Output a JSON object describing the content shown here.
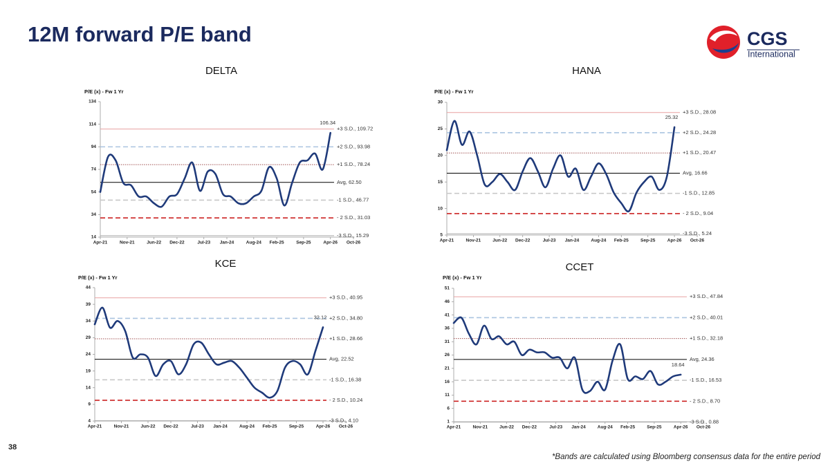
{
  "header": {
    "title": "12M forward P/E band"
  },
  "logo": {
    "name": "CGS",
    "sub": "International"
  },
  "chart_data": [
    {
      "type": "line",
      "title": "DELTA",
      "y_label": "P/E (x) - Fw 1 Yr",
      "x": [
        0,
        2,
        4,
        6,
        8,
        10,
        12,
        14,
        16,
        18,
        20,
        22,
        24,
        26,
        28,
        30,
        32,
        34,
        36,
        38,
        40,
        42,
        44,
        46,
        48,
        50,
        52,
        54,
        56,
        58,
        60
      ],
      "values": [
        54,
        85,
        82,
        62,
        60,
        50,
        50,
        44,
        41,
        50,
        52,
        66,
        80,
        55,
        72,
        70,
        52,
        50,
        44,
        44,
        50,
        55,
        76,
        66,
        42,
        62,
        80,
        82,
        88,
        74,
        106.34
      ],
      "color": "#1f3a7a",
      "xlim": [
        0,
        66
      ],
      "xticks": [
        {
          "value": 0,
          "label": "Apr-21"
        },
        {
          "value": 7,
          "label": "Nov-21"
        },
        {
          "value": 14,
          "label": "Jun-22"
        },
        {
          "value": 20,
          "label": "Dec-22"
        },
        {
          "value": 27,
          "label": "Jul-23"
        },
        {
          "value": 33,
          "label": "Jan-24"
        },
        {
          "value": 40,
          "label": "Aug-24"
        },
        {
          "value": 46,
          "label": "Feb-25"
        },
        {
          "value": 53,
          "label": "Sep-25"
        },
        {
          "value": 60,
          "label": "Apr-26"
        },
        {
          "value": 66,
          "label": "Oct-26"
        }
      ],
      "ylim": [
        14,
        134
      ],
      "yticks": [
        14,
        34,
        54,
        74,
        94,
        114,
        134
      ],
      "bands": [
        {
          "value": 109.72,
          "label": "+3 S.D., 109.72",
          "color": "#e8a0a0",
          "style": "solid"
        },
        {
          "value": 93.98,
          "label": "+2 S.D., 93.98",
          "color": "#aac4e0",
          "style": "dashed"
        },
        {
          "value": 78.24,
          "label": "+1 S.D., 78.24",
          "color": "#a05050",
          "style": "dotted"
        },
        {
          "value": 62.5,
          "label": "Avg, 62.50",
          "color": "#000000",
          "style": "solid"
        },
        {
          "value": 46.77,
          "label": "-1 S.D., 46.77",
          "color": "#c8c8c8",
          "style": "dashed"
        },
        {
          "value": 31.03,
          "label": "- 2 S.D., 31.03",
          "color": "#cc2222",
          "style": "dashed"
        },
        {
          "value": 15.29,
          "label": "-3 S.D., 15.29",
          "color": "#aaaaaa",
          "style": "solid"
        }
      ]
    },
    {
      "type": "line",
      "title": "HANA",
      "y_label": "P/E (x) - Fw 1 Yr",
      "x": [
        0,
        2,
        4,
        6,
        8,
        10,
        12,
        14,
        16,
        18,
        20,
        22,
        24,
        26,
        28,
        30,
        32,
        34,
        36,
        38,
        40,
        42,
        44,
        46,
        48,
        50,
        52,
        54,
        56,
        58,
        60
      ],
      "values": [
        21,
        26.5,
        22,
        24.5,
        20,
        14.5,
        15,
        16.5,
        15,
        13.5,
        17,
        19.5,
        17,
        14,
        17.5,
        20,
        16,
        17.5,
        13.5,
        16,
        18.5,
        16.5,
        13,
        11,
        9.5,
        13,
        15,
        16,
        13.5,
        16,
        25.32
      ],
      "color": "#1f3a7a",
      "xlim": [
        0,
        66
      ],
      "xticks": [
        {
          "value": 0,
          "label": "Apr-21"
        },
        {
          "value": 7,
          "label": "Nov-21"
        },
        {
          "value": 14,
          "label": "Jun-22"
        },
        {
          "value": 20,
          "label": "Dec-22"
        },
        {
          "value": 27,
          "label": "Jul-23"
        },
        {
          "value": 33,
          "label": "Jan-24"
        },
        {
          "value": 40,
          "label": "Aug-24"
        },
        {
          "value": 46,
          "label": "Feb-25"
        },
        {
          "value": 53,
          "label": "Sep-25"
        },
        {
          "value": 60,
          "label": "Apr-26"
        },
        {
          "value": 66,
          "label": "Oct-26"
        }
      ],
      "ylim": [
        5,
        30
      ],
      "yticks": [
        5,
        10,
        15,
        20,
        25,
        30
      ],
      "bands": [
        {
          "value": 28.08,
          "label": "+3 S.D., 28.08",
          "color": "#e8a0a0",
          "style": "solid"
        },
        {
          "value": 24.28,
          "label": "+2 S.D., 24.28",
          "color": "#aac4e0",
          "style": "dashed"
        },
        {
          "value": 20.47,
          "label": "+1 S.D., 20.47",
          "color": "#a05050",
          "style": "dotted"
        },
        {
          "value": 16.66,
          "label": "Avg, 16.66",
          "color": "#000000",
          "style": "solid"
        },
        {
          "value": 12.85,
          "label": "-1 S.D., 12.85",
          "color": "#c8c8c8",
          "style": "dashed"
        },
        {
          "value": 9.04,
          "label": "- 2 S.D., 9.04",
          "color": "#cc2222",
          "style": "dashed"
        },
        {
          "value": 5.24,
          "label": "-3 S.D., 5.24",
          "color": "#aaaaaa",
          "style": "solid"
        }
      ]
    },
    {
      "type": "line",
      "title": "KCE",
      "y_label": "P/E (x) - Fw 1 Yr",
      "x": [
        0,
        2,
        4,
        6,
        8,
        10,
        12,
        14,
        16,
        18,
        20,
        22,
        24,
        26,
        28,
        30,
        32,
        34,
        36,
        38,
        40,
        42,
        44,
        46,
        48,
        50,
        52,
        54,
        56,
        58,
        60
      ],
      "values": [
        33,
        38,
        32,
        34,
        31,
        23,
        24,
        23,
        17.5,
        21,
        22,
        18,
        21,
        27,
        27.5,
        24,
        21,
        21.5,
        22,
        20,
        17,
        14,
        12.5,
        11,
        13,
        20,
        22,
        21,
        18,
        25,
        32.12
      ],
      "color": "#1f3a7a",
      "xlim": [
        0,
        66
      ],
      "xticks": [
        {
          "value": 0,
          "label": "Apr-21"
        },
        {
          "value": 7,
          "label": "Nov-21"
        },
        {
          "value": 14,
          "label": "Jun-22"
        },
        {
          "value": 20,
          "label": "Dec-22"
        },
        {
          "value": 27,
          "label": "Jul-23"
        },
        {
          "value": 33,
          "label": "Jan-24"
        },
        {
          "value": 40,
          "label": "Aug-24"
        },
        {
          "value": 46,
          "label": "Feb-25"
        },
        {
          "value": 53,
          "label": "Sep-25"
        },
        {
          "value": 60,
          "label": "Apr-26"
        },
        {
          "value": 66,
          "label": "Oct-26"
        }
      ],
      "ylim": [
        4,
        44
      ],
      "yticks": [
        4,
        9,
        14,
        19,
        24,
        29,
        34,
        39,
        44
      ],
      "bands": [
        {
          "value": 40.95,
          "label": "+3 S.D., 40.95",
          "color": "#e8a0a0",
          "style": "solid"
        },
        {
          "value": 34.8,
          "label": "+2 S.D., 34.80",
          "color": "#aac4e0",
          "style": "dashed"
        },
        {
          "value": 28.66,
          "label": "+1 S.D., 28.66",
          "color": "#a05050",
          "style": "dotted"
        },
        {
          "value": 22.52,
          "label": "Avg, 22.52",
          "color": "#000000",
          "style": "solid"
        },
        {
          "value": 16.38,
          "label": "-1 S.D., 16.38",
          "color": "#c8c8c8",
          "style": "dashed"
        },
        {
          "value": 10.24,
          "label": "- 2 S.D., 10.24",
          "color": "#cc2222",
          "style": "dashed"
        },
        {
          "value": 4.1,
          "label": "-3 S.D., 4.10",
          "color": "#aaaaaa",
          "style": "solid"
        }
      ]
    },
    {
      "type": "line",
      "title": "CCET",
      "y_label": "P/E (x) - Fw 1 Yr",
      "x": [
        0,
        2,
        4,
        6,
        8,
        10,
        12,
        14,
        16,
        18,
        20,
        22,
        24,
        26,
        28,
        30,
        32,
        34,
        36,
        38,
        40,
        42,
        44,
        46,
        48,
        50,
        52,
        54,
        56,
        58,
        60
      ],
      "values": [
        38,
        40,
        34,
        30,
        37,
        32,
        33,
        30,
        31,
        26,
        28,
        27,
        27,
        25,
        25,
        21,
        25,
        13,
        12.5,
        16,
        13,
        24,
        30,
        17,
        18,
        17,
        20,
        15,
        16,
        18,
        18.64
      ],
      "color": "#1f3a7a",
      "xlim": [
        0,
        66
      ],
      "xticks": [
        {
          "value": 0,
          "label": "Apr-21"
        },
        {
          "value": 7,
          "label": "Nov-21"
        },
        {
          "value": 14,
          "label": "Jun-22"
        },
        {
          "value": 20,
          "label": "Dec-22"
        },
        {
          "value": 27,
          "label": "Jul-23"
        },
        {
          "value": 33,
          "label": "Jan-24"
        },
        {
          "value": 40,
          "label": "Aug-24"
        },
        {
          "value": 46,
          "label": "Feb-25"
        },
        {
          "value": 53,
          "label": "Sep-25"
        },
        {
          "value": 60,
          "label": "Apr-26"
        },
        {
          "value": 66,
          "label": "Oct-26"
        }
      ],
      "ylim": [
        1,
        51
      ],
      "yticks": [
        1,
        6,
        11,
        16,
        21,
        26,
        31,
        36,
        41,
        46,
        51
      ],
      "bands": [
        {
          "value": 47.84,
          "label": "+3 S.D., 47.84",
          "color": "#e8a0a0",
          "style": "solid"
        },
        {
          "value": 40.01,
          "label": "+2 S.D., 40.01",
          "color": "#aac4e0",
          "style": "dashed"
        },
        {
          "value": 32.18,
          "label": "+1 S.D., 32.18",
          "color": "#a05050",
          "style": "dotted"
        },
        {
          "value": 24.36,
          "label": "Avg, 24.36",
          "color": "#000000",
          "style": "solid"
        },
        {
          "value": 16.53,
          "label": "-1 S.D., 16.53",
          "color": "#c8c8c8",
          "style": "dashed"
        },
        {
          "value": 8.7,
          "label": "- 2 S.D., 8.70",
          "color": "#cc2222",
          "style": "dashed"
        },
        {
          "value": 0.88,
          "label": "-3 S.D., 0.88",
          "color": "#aaaaaa",
          "style": "solid"
        }
      ]
    }
  ],
  "footnote": "*Bands are calculated using Bloomberg consensus data for the entire period",
  "page_number": "38"
}
